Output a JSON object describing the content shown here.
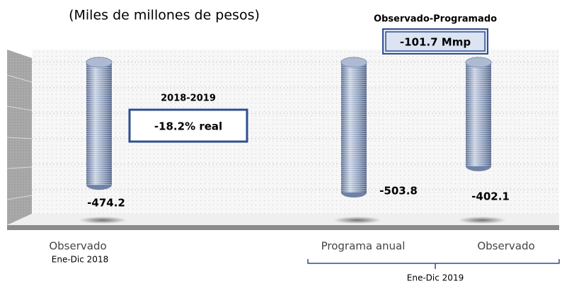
{
  "chart_data": {
    "type": "bar",
    "title": "(Miles de millones de pesos)",
    "categories": [
      "Observado",
      "Programa anual",
      "Observado"
    ],
    "values": [
      -474.2,
      -503.8,
      -402.1
    ],
    "color": "#9fb0cc",
    "groups": [
      "Ene-Dic 2018",
      "Ene-Dic 2019"
    ],
    "annotations": [
      {
        "title": "2018-2019",
        "text": "-18.2% real"
      },
      {
        "title": "Observado-Programado",
        "text": "-101.7 Mmp"
      }
    ]
  }
}
